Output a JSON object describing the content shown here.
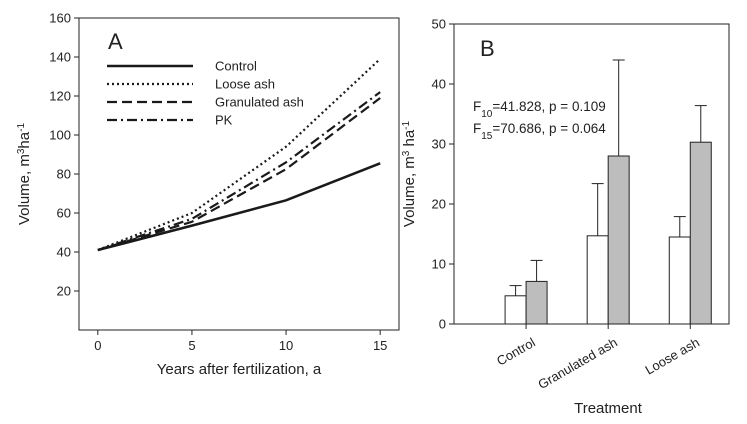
{
  "chart_data": [
    {
      "type": "line",
      "panel_label": "A",
      "xlabel": "Years after fertilization, a",
      "ylabel": "Volume, m³ha⁻¹",
      "x": [
        0,
        5,
        10,
        15
      ],
      "xlim": [
        -1,
        16
      ],
      "ylim": [
        0,
        160
      ],
      "xticks": [
        "0",
        "5",
        "10",
        "15"
      ],
      "yticks": [
        "20",
        "40",
        "60",
        "80",
        "100",
        "120",
        "140",
        "160"
      ],
      "legend_position": "top-left",
      "series": [
        {
          "name": "Control",
          "style": "solid",
          "values": [
            41,
            53.5,
            66.5,
            85.5
          ]
        },
        {
          "name": "Loose ash",
          "style": "dotted",
          "values": [
            41,
            60,
            94,
            139
          ]
        },
        {
          "name": "Granulated ash",
          "style": "dashed",
          "values": [
            41,
            55.5,
            82.5,
            119
          ]
        },
        {
          "name": "PK",
          "style": "dashdot",
          "values": [
            41,
            57,
            86,
            122
          ]
        }
      ]
    },
    {
      "type": "bar",
      "panel_label": "B",
      "xlabel": "Treatment",
      "ylabel": "Volume, m³ ha⁻¹",
      "ylim": [
        0,
        50
      ],
      "yticks": [
        "0",
        "10",
        "20",
        "30",
        "40",
        "50"
      ],
      "categories": [
        "Control",
        "Granulated ash",
        "Loose ash"
      ],
      "series": [
        {
          "fill": "#ffffff",
          "values": [
            4.7,
            14.7,
            14.5
          ],
          "errors": [
            1.7,
            8.7,
            3.4
          ]
        },
        {
          "fill": "#bdbdbd",
          "values": [
            7.1,
            28.0,
            30.3
          ],
          "errors": [
            3.5,
            16.0,
            6.1
          ]
        }
      ],
      "annotations": [
        {
          "prefix": "F",
          "sub": "10",
          "text": "=41.828, p = 0.109"
        },
        {
          "prefix": "F",
          "sub": "15",
          "text": "=70.686, p = 0.064"
        }
      ]
    }
  ]
}
